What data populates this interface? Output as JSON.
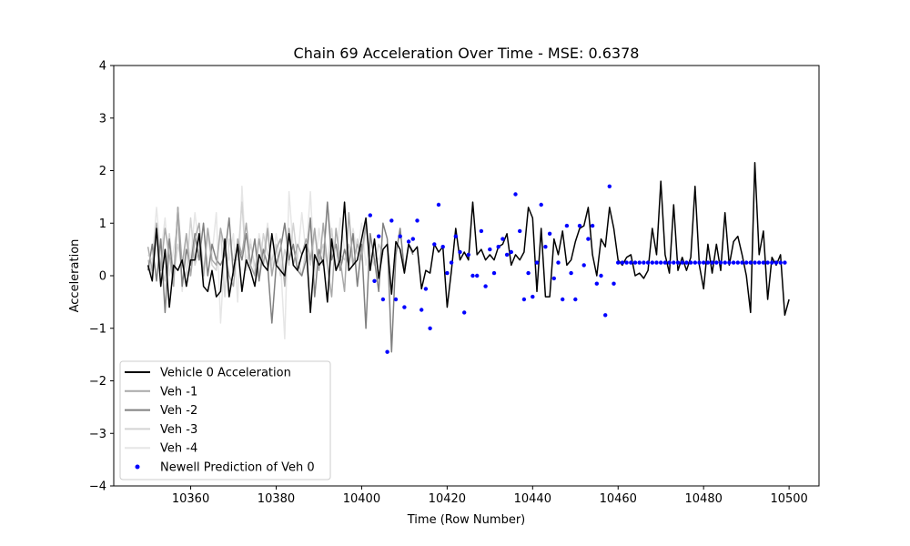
{
  "chart_data": {
    "type": "line",
    "title": "Chain 69 Acceleration Over Time - MSE: 0.6378",
    "xlabel": "Time (Row Number)",
    "ylabel": "Acceleration",
    "xlim": [
      10342,
      10507
    ],
    "ylim": [
      -4,
      4
    ],
    "x_ticks": [
      10360,
      10380,
      10400,
      10420,
      10440,
      10460,
      10480,
      10500
    ],
    "y_ticks": [
      -4,
      -3,
      -2,
      -1,
      0,
      1,
      2,
      3,
      4
    ],
    "grid": false,
    "legend_position": "lower-left",
    "series": [
      {
        "name": "Vehicle 0 Acceleration",
        "kind": "line",
        "color": "#000000",
        "x_start": 10350,
        "values": [
          0.2,
          -0.1,
          0.9,
          -0.2,
          0.5,
          -0.6,
          0.2,
          0.1,
          0.3,
          -0.2,
          0.3,
          0.3,
          0.8,
          -0.2,
          -0.3,
          0.1,
          -0.4,
          -0.3,
          0.7,
          -0.4,
          0.1,
          0.6,
          -0.3,
          0.3,
          0.1,
          -0.2,
          0.4,
          0.2,
          0.1,
          0.8,
          0.2,
          0.1,
          0.0,
          0.8,
          0.2,
          0.1,
          0.4,
          0.6,
          -0.7,
          0.4,
          0.2,
          0.3,
          -0.5,
          0.7,
          0.1,
          0.3,
          1.4,
          0.1,
          0.2,
          0.3,
          0.7,
          1.1,
          0.1,
          0.7,
          -0.05,
          0.5,
          0.6,
          -0.35,
          0.65,
          0.5,
          0.05,
          0.6,
          0.45,
          0.55,
          -0.25,
          0.1,
          0.05,
          0.6,
          0.45,
          0.55,
          -0.6,
          0.1,
          0.9,
          0.3,
          0.45,
          0.3,
          1.4,
          0.4,
          0.5,
          0.3,
          0.4,
          0.3,
          0.55,
          0.6,
          0.8,
          0.2,
          0.4,
          0.3,
          0.45,
          1.3,
          1.1,
          -0.3,
          0.9,
          -0.4,
          -0.4,
          0.7,
          0.4,
          0.85,
          0.2,
          0.3,
          0.65,
          0.9,
          0.95,
          1.3,
          0.4,
          0.0,
          0.7,
          0.55,
          1.3,
          0.9,
          0.3,
          0.2,
          0.35,
          0.4,
          0.0,
          0.05,
          -0.05,
          0.1,
          0.9,
          0.4,
          1.8,
          0.4,
          0.05,
          1.35,
          0.1,
          0.35,
          0.1,
          0.35,
          1.7,
          0.2,
          -0.25,
          0.6,
          0.05,
          0.6,
          0.1,
          1.2,
          0.2,
          0.65,
          0.75,
          0.4,
          0.0,
          -0.7,
          2.15,
          0.4,
          0.85,
          -0.45,
          0.35,
          0.2,
          0.4,
          -0.75,
          -0.45
        ]
      },
      {
        "name": "Veh -1",
        "kind": "line",
        "color": "#a9a9a9",
        "x_start": 10350,
        "values": [
          0.55,
          0.1,
          1.0,
          0.1,
          0.9,
          0.4,
          -0.2,
          1.3,
          0.2,
          0.8,
          0.0,
          0.7,
          1.0,
          0.0,
          0.9,
          0.3,
          0.2,
          0.9,
          0.5,
          0.0,
          -0.2,
          0.7,
          0.4,
          1.0,
          0.2,
          0.0,
          0.7,
          0.2,
          0.9,
          0.0,
          0.5,
          0.7,
          -0.2,
          0.9,
          0.2,
          0.6,
          0.4,
          0.7,
          0.3,
          0.9,
          0.1,
          1.0,
          0.2,
          -0.4,
          0.9,
          0.3,
          -0.3,
          1.2,
          0.2,
          0.6,
          0.4,
          1.0
        ]
      },
      {
        "name": "Veh -2",
        "kind": "line",
        "color": "#808080",
        "x_start": 10350,
        "values": [
          0.1,
          0.6,
          -0.1,
          0.7,
          -0.7,
          0.7,
          -0.1,
          1.3,
          -0.2,
          0.5,
          0.2,
          0.8,
          0.3,
          1.0,
          0.0,
          0.6,
          0.3,
          0.2,
          0.4,
          1.1,
          0.0,
          0.6,
          0.3,
          0.8,
          0.2,
          0.7,
          -0.1,
          0.5,
          0.2,
          -0.9,
          0.2,
          0.5,
          1.0,
          0.3,
          0.6,
          0.1,
          0.0,
          0.3,
          1.1,
          -0.4,
          0.5,
          0.2,
          1.4,
          0.3,
          0.6,
          0.1,
          0.5,
          0.2,
          0.8,
          -0.2,
          0.6,
          -1.0,
          0.8,
          0.3,
          -0.3,
          1.0,
          0.7,
          -1.45,
          0.4,
          0.9,
          0.1,
          0.6,
          0.4
        ]
      },
      {
        "name": "Veh -3",
        "kind": "line",
        "color": "#d3d3d3",
        "x_start": 10350,
        "values": [
          0.3,
          0.0,
          0.9,
          0.2,
          -0.1,
          0.8,
          0.0,
          0.6,
          0.2,
          0.0,
          1.1,
          0.2,
          0.5,
          0.0,
          0.8,
          0.2,
          0.1,
          0.9,
          -0.4,
          0.7,
          0.3,
          0.3,
          1.4,
          0.1,
          0.6,
          0.2,
          0.0,
          0.8,
          0.4,
          0.3,
          0.6,
          0.0,
          0.5,
          0.2,
          1.0,
          0.3,
          0.0,
          0.5,
          0.2,
          0.8,
          0.3,
          0.6,
          0.2,
          0.9,
          0.1,
          0.4,
          0.3,
          0.6,
          0.2,
          0.7,
          0.3,
          0.9,
          0.4,
          0.2,
          0.6,
          0.4
        ]
      },
      {
        "name": "Veh -4",
        "kind": "line",
        "color": "#e6e6e6",
        "x_start": 10350,
        "values": [
          0.4,
          0.3,
          1.3,
          0.4,
          1.1,
          0.0,
          0.5,
          1.0,
          -0.3,
          0.8,
          0.3,
          1.2,
          0.5,
          -0.2,
          0.9,
          0.4,
          1.2,
          -0.9,
          0.5,
          0.3,
          0.8,
          -0.5,
          1.7,
          0.2,
          0.7,
          0.0,
          0.8,
          0.4,
          1.0,
          0.2,
          0.8,
          0.3,
          -1.2,
          1.6,
          0.5,
          0.3,
          1.2,
          0.4,
          1.6,
          0.0,
          0.9,
          0.3,
          1.4,
          0.6,
          0.2,
          1.1,
          0.5,
          0.3,
          0.9,
          0.4,
          1.0,
          0.2,
          0.7,
          0.4,
          0.3,
          0.6
        ]
      },
      {
        "name": "Newell Prediction of Veh 0",
        "kind": "scatter",
        "color": "#0000ff",
        "x_start": 10402,
        "values": [
          1.15,
          -0.1,
          0.75,
          -0.45,
          -1.45,
          1.05,
          -0.45,
          0.75,
          -0.6,
          0.65,
          0.7,
          1.05,
          -0.65,
          -0.25,
          -1.0,
          0.6,
          1.35,
          0.55,
          0.05,
          0.25,
          0.75,
          0.45,
          -0.7,
          0.4,
          0.0,
          0.0,
          0.85,
          -0.2,
          0.5,
          0.05,
          0.55,
          0.7,
          0.4,
          0.45,
          1.55,
          0.85,
          -0.45,
          0.05,
          -0.4,
          0.25,
          1.35,
          0.55,
          0.8,
          -0.05,
          0.25,
          -0.45,
          0.95,
          0.05,
          -0.45,
          0.95,
          0.2,
          0.7,
          0.95,
          -0.15,
          0.0,
          -0.75,
          1.7,
          -0.15,
          0.25,
          0.25,
          0.25,
          0.25,
          0.25,
          0.25,
          0.25,
          0.25,
          0.25,
          0.25,
          0.25,
          0.25,
          0.25,
          0.25,
          0.25,
          0.25,
          0.25,
          0.25,
          0.25,
          0.25,
          0.25,
          0.25,
          0.25,
          0.25,
          0.25,
          0.25,
          0.25,
          0.25,
          0.25,
          0.25,
          0.25,
          0.25,
          0.25,
          0.25,
          0.25,
          0.25,
          0.25,
          0.25,
          0.25,
          0.25
        ]
      }
    ]
  }
}
